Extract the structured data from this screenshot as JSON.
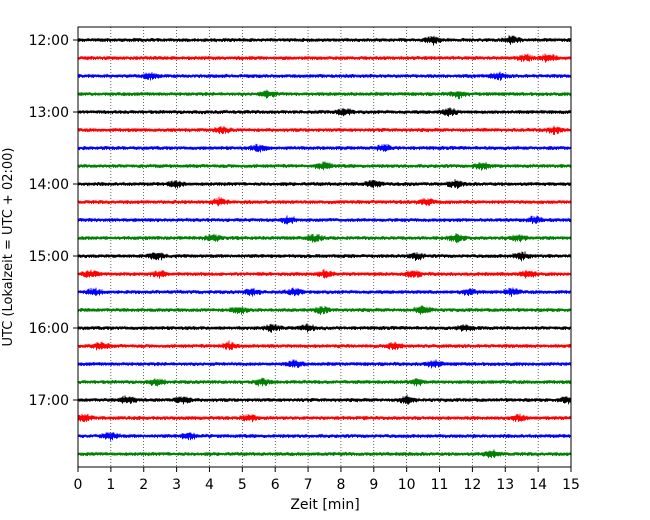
{
  "chart_data": {
    "type": "line",
    "title": "",
    "xlabel": "Zeit  [min]",
    "ylabel": "UTC (Lokalzeit = UTC + 02:00)",
    "xlim": [
      0,
      15
    ],
    "x_ticks": [
      0,
      1,
      2,
      3,
      4,
      5,
      6,
      7,
      8,
      9,
      10,
      11,
      12,
      13,
      14,
      15
    ],
    "x_tick_labels": [
      "0",
      "1",
      "2",
      "3",
      "4",
      "5",
      "6",
      "7",
      "8",
      "9",
      "10",
      "11",
      "12",
      "13",
      "14",
      "15"
    ],
    "y_tick_labels": [
      "12:00",
      "13:00",
      "14:00",
      "15:00",
      "16:00",
      "17:00"
    ],
    "grid": "vertical dotted at each minute",
    "trace_interval_min": 15,
    "color_cycle": [
      "#000000",
      "#ff0000",
      "#0000ff",
      "#008000"
    ],
    "series": [
      {
        "start": "12:00",
        "color": "#000000",
        "bursts": [
          10.8,
          13.2
        ]
      },
      {
        "start": "12:15",
        "color": "#ff0000",
        "bursts": [
          13.6,
          14.3
        ]
      },
      {
        "start": "12:30",
        "color": "#0000ff",
        "bursts": [
          2.2,
          12.8
        ]
      },
      {
        "start": "12:45",
        "color": "#008000",
        "bursts": [
          5.8,
          11.6
        ]
      },
      {
        "start": "13:00",
        "color": "#000000",
        "bursts": [
          8.1,
          11.3
        ]
      },
      {
        "start": "13:15",
        "color": "#ff0000",
        "bursts": [
          4.4,
          14.5
        ]
      },
      {
        "start": "13:30",
        "color": "#0000ff",
        "bursts": [
          5.5,
          9.3
        ]
      },
      {
        "start": "13:45",
        "color": "#008000",
        "bursts": [
          7.5,
          12.3
        ]
      },
      {
        "start": "14:00",
        "color": "#000000",
        "bursts": [
          3.0,
          9.0,
          11.5
        ]
      },
      {
        "start": "14:15",
        "color": "#ff0000",
        "bursts": [
          4.3,
          10.6
        ]
      },
      {
        "start": "14:30",
        "color": "#0000ff",
        "bursts": [
          6.4,
          13.9
        ]
      },
      {
        "start": "14:45",
        "color": "#008000",
        "bursts": [
          4.1,
          7.2,
          11.5,
          13.4
        ]
      },
      {
        "start": "15:00",
        "color": "#000000",
        "bursts": [
          2.4,
          10.3,
          13.5
        ]
      },
      {
        "start": "15:15",
        "color": "#ff0000",
        "bursts": [
          0.4,
          2.5,
          7.5,
          10.2,
          13.7
        ]
      },
      {
        "start": "15:30",
        "color": "#0000ff",
        "bursts": [
          0.5,
          5.3,
          6.6,
          11.9,
          13.2
        ]
      },
      {
        "start": "15:45",
        "color": "#008000",
        "bursts": [
          4.9,
          7.4,
          10.5
        ]
      },
      {
        "start": "16:00",
        "color": "#000000",
        "bursts": [
          5.9,
          7.0,
          11.8
        ]
      },
      {
        "start": "16:15",
        "color": "#ff0000",
        "bursts": [
          0.7,
          4.6,
          9.6
        ]
      },
      {
        "start": "16:30",
        "color": "#0000ff",
        "bursts": [
          6.6,
          10.8
        ]
      },
      {
        "start": "16:45",
        "color": "#008000",
        "bursts": [
          2.4,
          5.6,
          10.3
        ]
      },
      {
        "start": "17:00",
        "color": "#000000",
        "bursts": [
          1.5,
          3.2,
          10.0,
          14.9
        ]
      },
      {
        "start": "17:15",
        "color": "#ff0000",
        "bursts": [
          0.2,
          5.2,
          13.4
        ]
      },
      {
        "start": "17:30",
        "color": "#0000ff",
        "bursts": [
          1.0,
          3.4
        ]
      },
      {
        "start": "17:45",
        "color": "#008000",
        "bursts": [
          12.6
        ]
      }
    ]
  }
}
